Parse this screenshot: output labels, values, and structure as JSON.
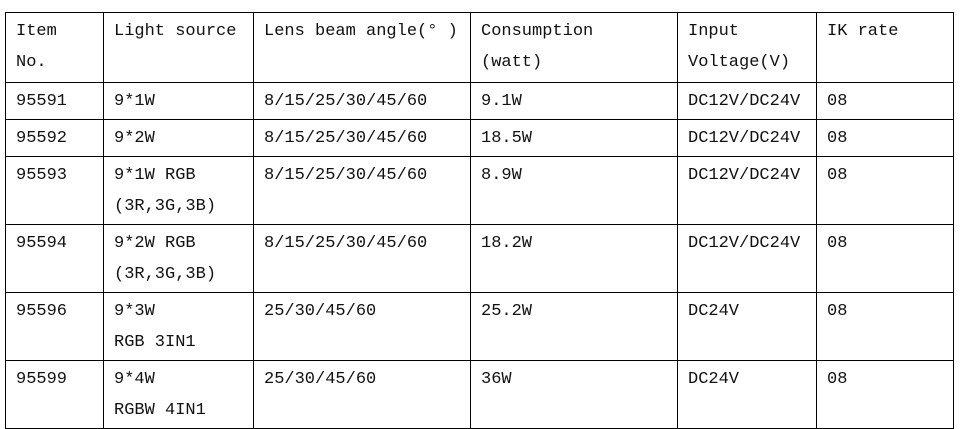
{
  "table": {
    "headers": [
      "Item\nNo.",
      "Light source",
      "Lens beam angle(° )",
      "Consumption\n(watt)",
      "Input\nVoltage(V)",
      "IK rate"
    ],
    "rows": [
      [
        "95591",
        "9*1W",
        "8/15/25/30/45/60",
        "9.1W",
        "DC12V/DC24V",
        "08"
      ],
      [
        "95592",
        "9*2W",
        "8/15/25/30/45/60",
        "18.5W",
        "DC12V/DC24V",
        "08"
      ],
      [
        "95593",
        "9*1W RGB\n(3R,3G,3B)",
        "8/15/25/30/45/60",
        "8.9W",
        "DC12V/DC24V",
        "08"
      ],
      [
        "95594",
        "9*2W RGB\n(3R,3G,3B)",
        "8/15/25/30/45/60",
        "18.2W",
        "DC12V/DC24V",
        "08"
      ],
      [
        "95596",
        "9*3W\nRGB 3IN1",
        "25/30/45/60",
        "25.2W",
        "DC24V",
        "08"
      ],
      [
        "95599",
        "9*4W\nRGBW 4IN1",
        "25/30/45/60",
        "36W",
        "DC24V",
        "08"
      ]
    ]
  }
}
